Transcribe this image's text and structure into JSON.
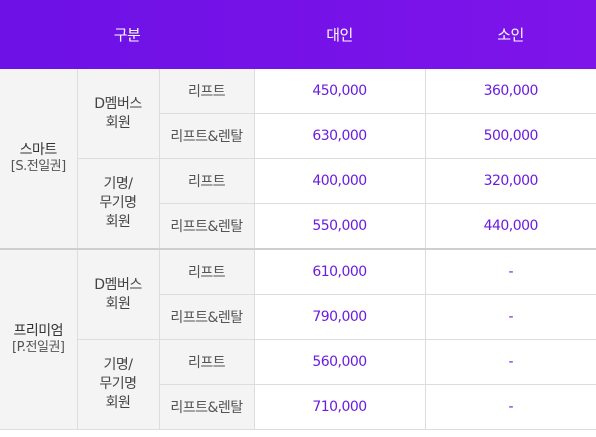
{
  "colors": {
    "header_start": "#6d11e6",
    "header_end": "#7e14ea",
    "price_text": "#6a1de0",
    "label_bg": "#f4f4f4"
  },
  "header": {
    "category": "구분",
    "adult": "대인",
    "child": "소인"
  },
  "groups": [
    {
      "name": "스마트",
      "sub": "[S.전일권]",
      "members": [
        {
          "lines": [
            "D멤버스",
            "회원"
          ],
          "rows": [
            {
              "plan": "리프트",
              "adult": "450,000",
              "child": "360,000"
            },
            {
              "plan": "리프트&렌탈",
              "adult": "630,000",
              "child": "500,000"
            }
          ]
        },
        {
          "lines": [
            "기명/",
            "무기명",
            "회원"
          ],
          "rows": [
            {
              "plan": "리프트",
              "adult": "400,000",
              "child": "320,000"
            },
            {
              "plan": "리프트&렌탈",
              "adult": "550,000",
              "child": "440,000"
            }
          ]
        }
      ]
    },
    {
      "name": "프리미엄",
      "sub": "[P.전일권]",
      "members": [
        {
          "lines": [
            "D멤버스",
            "회원"
          ],
          "rows": [
            {
              "plan": "리프트",
              "adult": "610,000",
              "child": "-"
            },
            {
              "plan": "리프트&렌탈",
              "adult": "790,000",
              "child": "-"
            }
          ]
        },
        {
          "lines": [
            "기명/",
            "무기명",
            "회원"
          ],
          "rows": [
            {
              "plan": "리프트",
              "adult": "560,000",
              "child": "-"
            },
            {
              "plan": "리프트&렌탈",
              "adult": "710,000",
              "child": "-"
            }
          ]
        }
      ]
    }
  ]
}
